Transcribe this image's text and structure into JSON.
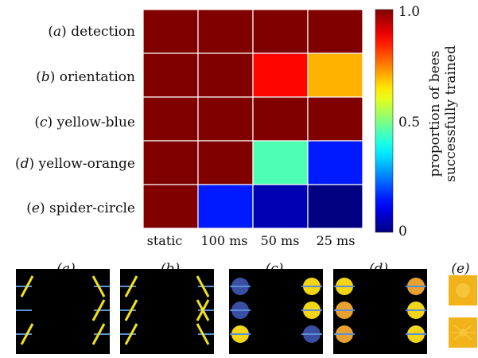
{
  "chart_data": {
    "type": "heatmap",
    "rows": [
      {
        "letter": "a",
        "name": "detection"
      },
      {
        "letter": "b",
        "name": "orientation"
      },
      {
        "letter": "c",
        "name": "yellow-blue"
      },
      {
        "letter": "d",
        "name": "yellow-orange"
      },
      {
        "letter": "e",
        "name": "spider-circle"
      }
    ],
    "columns": [
      "static",
      "100 ms",
      "50 ms",
      "25 ms"
    ],
    "values": [
      [
        1.0,
        1.0,
        1.0,
        1.0
      ],
      [
        1.0,
        1.0,
        0.87,
        0.7
      ],
      [
        1.0,
        1.0,
        1.0,
        1.0
      ],
      [
        1.0,
        1.0,
        0.45,
        0.15
      ],
      [
        1.0,
        0.15,
        0.05,
        0.0
      ]
    ],
    "colorbar": {
      "label_line1": "proportion of bees",
      "label_line2": "successfully trained",
      "range": [
        0,
        1
      ],
      "ticks": [
        "1.0",
        "0.5",
        "0"
      ]
    },
    "colormap": "jet"
  },
  "panels": {
    "labels": [
      "a",
      "b",
      "c",
      "d",
      "e"
    ],
    "colors": {
      "background": "#000000",
      "bar": "#f2e21c",
      "line": "#5b8fd6",
      "yellow": "#f2d516",
      "blue": "#3a4fa3",
      "orange": "#e8a030",
      "tile": "#f2b21a"
    }
  }
}
